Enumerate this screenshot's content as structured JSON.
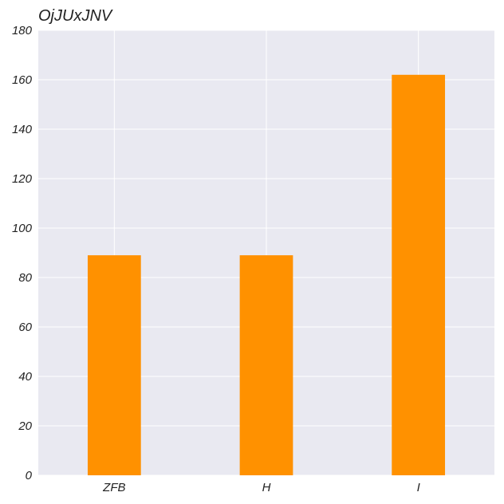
{
  "chart_data": {
    "type": "bar",
    "title": "OjJUxJNV",
    "categories": [
      "ZFB",
      "H",
      "I"
    ],
    "values": [
      89,
      89,
      162
    ],
    "ylim": [
      0,
      180
    ],
    "yticks": [
      0,
      20,
      40,
      60,
      80,
      100,
      120,
      140,
      160,
      180
    ],
    "xlabel": "",
    "ylabel": "",
    "grid": true,
    "bar_color": "#ff9100",
    "plot_background": "#e9e9f1",
    "grid_color": "#ffffff"
  }
}
